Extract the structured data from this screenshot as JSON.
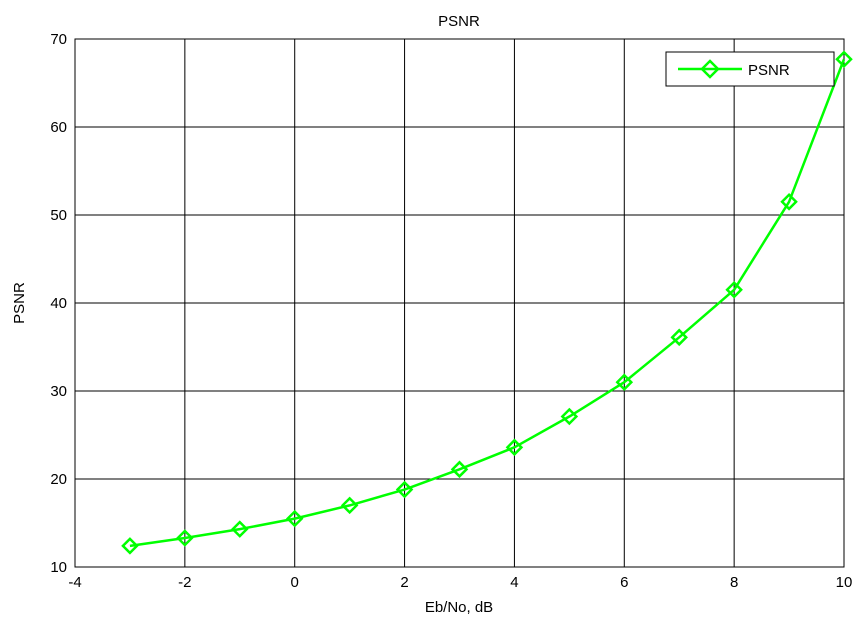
{
  "chart_data": {
    "type": "line",
    "title": "PSNR",
    "xlabel": "Eb/No, dB",
    "ylabel": "PSNR",
    "xlim": [
      -4,
      10
    ],
    "ylim": [
      10,
      70
    ],
    "xticks": [
      "-4",
      "-2",
      "0",
      "2",
      "4",
      "6",
      "8",
      "10"
    ],
    "yticks": [
      "10",
      "20",
      "30",
      "40",
      "50",
      "60",
      "70"
    ],
    "grid": true,
    "legend_position": "top-right",
    "series": [
      {
        "name": "PSNR",
        "color": "#00ff00",
        "marker": "diamond",
        "x": [
          -3,
          -2,
          -1,
          0,
          1,
          2,
          3,
          4,
          5,
          6,
          7,
          8,
          9,
          10
        ],
        "y": [
          12.4,
          13.3,
          14.3,
          15.5,
          17.0,
          18.8,
          21.1,
          23.6,
          27.1,
          31.0,
          36.1,
          41.5,
          51.5,
          67.7
        ]
      }
    ]
  }
}
